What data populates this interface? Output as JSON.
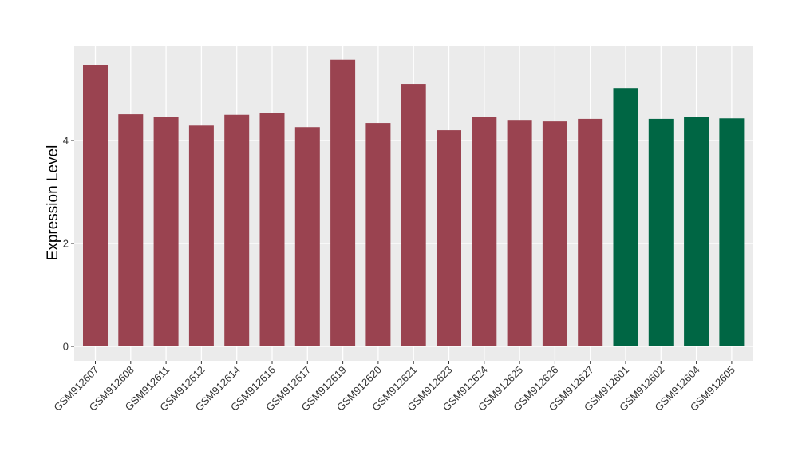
{
  "chart_data": {
    "type": "bar",
    "title": "",
    "xlabel": "",
    "ylabel": "Expression Level",
    "ylim": [
      -0.28,
      5.84
    ],
    "yticks": [
      0,
      2,
      4
    ],
    "grid": true,
    "categories": [
      "GSM912607",
      "GSM912608",
      "GSM912611",
      "GSM912612",
      "GSM912614",
      "GSM912616",
      "GSM912617",
      "GSM912619",
      "GSM912620",
      "GSM912621",
      "GSM912623",
      "GSM912624",
      "GSM912625",
      "GSM912626",
      "GSM912627",
      "GSM912601",
      "GSM912602",
      "GSM912604",
      "GSM912605"
    ],
    "values": [
      5.46,
      4.51,
      4.45,
      4.29,
      4.5,
      4.54,
      4.26,
      5.57,
      4.34,
      5.1,
      4.2,
      4.45,
      4.4,
      4.37,
      4.42,
      5.02,
      4.42,
      4.45,
      4.43
    ],
    "groups": [
      "a",
      "a",
      "a",
      "a",
      "a",
      "a",
      "a",
      "a",
      "a",
      "a",
      "a",
      "a",
      "a",
      "a",
      "a",
      "b",
      "b",
      "b",
      "b"
    ],
    "colors": {
      "a": "#9A4350",
      "b": "#006644"
    },
    "panel_background": "#EBEBEB"
  }
}
